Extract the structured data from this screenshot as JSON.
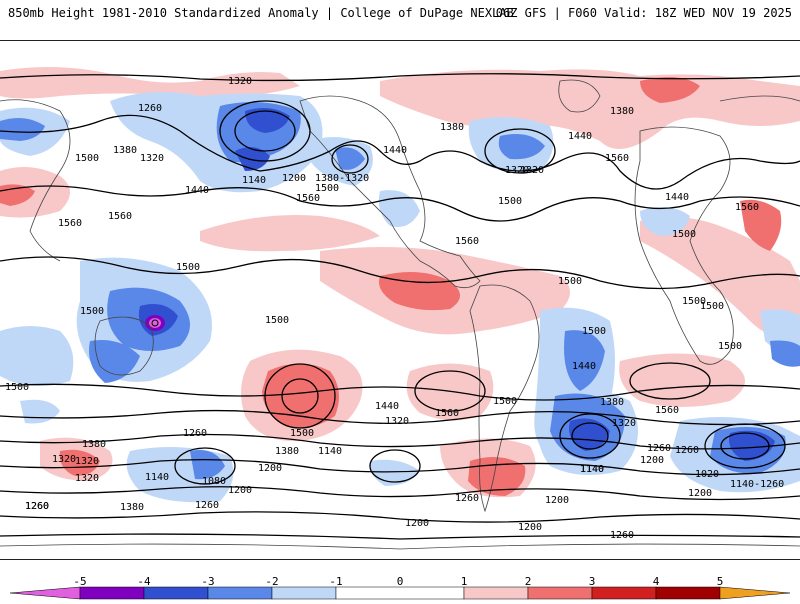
{
  "header": {
    "title_left": "850mb Height 1981-2010 Standardized Anomaly | College of DuPage NEXLAB",
    "title_right": "06Z GFS | F060 Valid: 18Z WED NOV 19 2025"
  },
  "colors": {
    "neg5": "#e060e0",
    "neg4": "#8000c0",
    "neg3": "#3050d0",
    "neg2": "#5a88e8",
    "neg1": "#c0d8f8",
    "zero": "#ffffff",
    "pos1": "#f8c8c8",
    "pos2": "#f07070",
    "pos3": "#d02020",
    "pos4": "#a00000",
    "pos5": "#f0a020"
  },
  "colorbar": {
    "ticks": [
      "-5",
      "-4",
      "-3",
      "-2",
      "-1",
      "0",
      "1",
      "2",
      "3",
      "4",
      "5"
    ]
  },
  "contour_labels": {
    "l1": "1320",
    "l2": "1260",
    "l3": "1500",
    "l4": "1380",
    "l5": "1320",
    "l6": "1440",
    "l7": "1560",
    "l8": "1140",
    "l9": "1200",
    "l10": "1380-1320",
    "l11": "1500",
    "l12": "1560",
    "l13": "1440",
    "l14": "1380",
    "l15": "1320",
    "l16": "1380",
    "l17": "1440",
    "l18": "1560",
    "l19": "1500",
    "l20": "1560",
    "l21": "1500",
    "l22": "1560",
    "l23": "1500",
    "l24": "1500",
    "l25": "1500",
    "l26": "1500",
    "l27": "1500",
    "l28": "1440",
    "l29": "1500",
    "l30": "1440",
    "l31": "1320",
    "l32": "1560",
    "l33": "1500",
    "l34": "1380",
    "l35": "1320",
    "l36": "1260",
    "l37": "1200",
    "l38": "1140",
    "l39": "1080",
    "l40": "1200",
    "l41": "1380",
    "l42": "1320",
    "l43": "1260",
    "l44": "1140",
    "l45": "1380",
    "l46": "1320",
    "l47": "1260",
    "l48": "1140",
    "l49": "1260",
    "l50": "1200",
    "l51": "1020",
    "l52": "1140-1260",
    "l53": "1200",
    "l54": "1260",
    "l55": "1200",
    "l56": "1260",
    "l57": "1200",
    "l58": "1200",
    "l59": "1260",
    "l60": "1380",
    "l61": "1320",
    "l62": "1260",
    "l63": "1320",
    "l64": "1140",
    "l65": "1500",
    "l66": "1560",
    "l67": "1500",
    "l68": "1440",
    "l69": "1500",
    "l70": "1560",
    "l71": "1500"
  }
}
